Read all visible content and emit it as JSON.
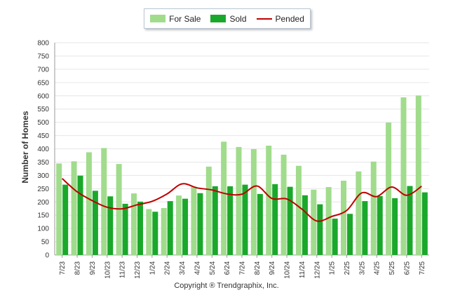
{
  "chart_data": {
    "type": "bar",
    "ylabel": "Number of Homes",
    "ylim": [
      0,
      800
    ],
    "yticks": [
      0,
      50,
      100,
      150,
      200,
      250,
      300,
      350,
      400,
      450,
      500,
      550,
      600,
      650,
      700,
      750,
      800
    ],
    "categories": [
      "7/23",
      "8/23",
      "9/23",
      "10/23",
      "11/23",
      "12/23",
      "1/24",
      "2/24",
      "3/24",
      "4/24",
      "5/24",
      "6/24",
      "7/24",
      "8/24",
      "9/24",
      "10/24",
      "11/24",
      "12/24",
      "1/25",
      "2/25",
      "3/25",
      "4/25",
      "5/25",
      "6/25",
      "7/25"
    ],
    "series": [
      {
        "name": "For Sale",
        "kind": "bar",
        "color": "#a0dc8c",
        "values": [
          345,
          353,
          387,
          403,
          343,
          232,
          173,
          177,
          224,
          258,
          333,
          427,
          407,
          399,
          412,
          378,
          336,
          246,
          256,
          280,
          315,
          352,
          499,
          594,
          601
        ]
      },
      {
        "name": "Sold",
        "kind": "bar",
        "color": "#1aa82b",
        "values": [
          265,
          299,
          242,
          221,
          193,
          201,
          163,
          203,
          212,
          233,
          259,
          259,
          265,
          230,
          267,
          257,
          225,
          191,
          137,
          155,
          203,
          222,
          214,
          260,
          236
        ]
      },
      {
        "name": "Pended",
        "kind": "line",
        "color": "#c00000",
        "values": [
          288,
          238,
          205,
          180,
          174,
          189,
          202,
          230,
          268,
          253,
          245,
          230,
          229,
          260,
          213,
          211,
          173,
          128,
          145,
          168,
          234,
          220,
          256,
          225,
          259
        ]
      }
    ],
    "legend_position": "top-center",
    "grid": true,
    "footer": "Copyright ® Trendgraphix, Inc."
  }
}
